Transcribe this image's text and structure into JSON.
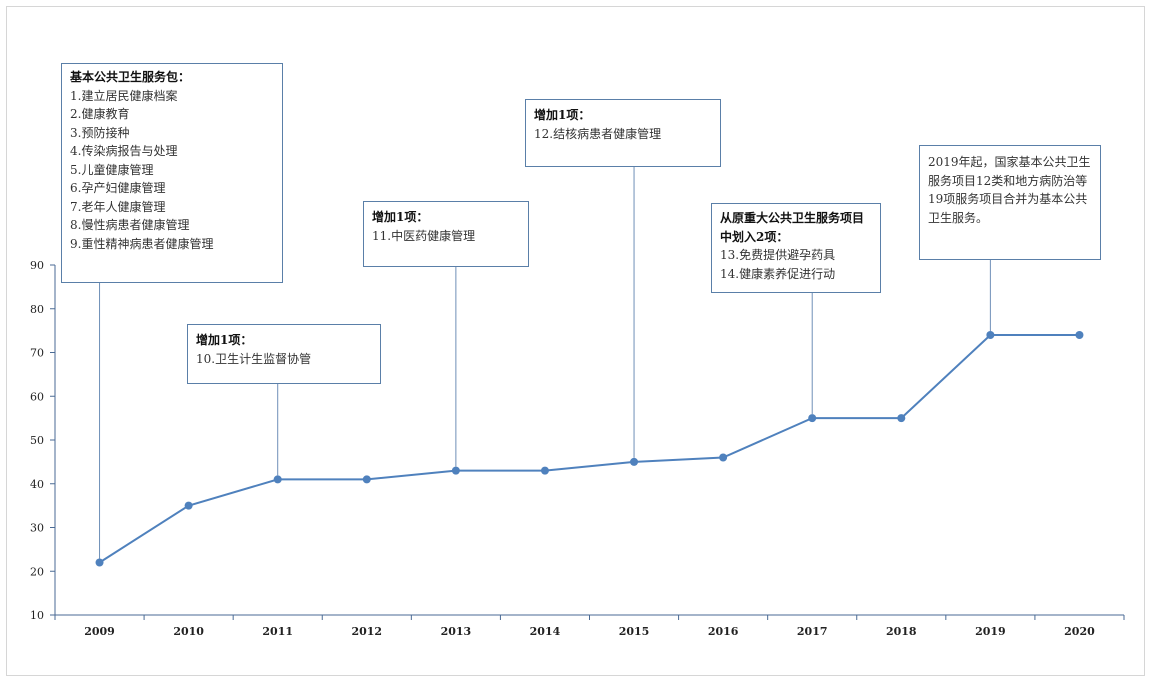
{
  "chart_data": {
    "type": "line",
    "title": "",
    "xlabel": "",
    "ylabel": "",
    "categories": [
      "2009",
      "2010",
      "2011",
      "2012",
      "2013",
      "2014",
      "2015",
      "2016",
      "2017",
      "2018",
      "2019",
      "2020"
    ],
    "values": [
      22,
      35,
      41,
      41,
      43,
      43,
      45,
      46,
      55,
      55,
      74,
      74
    ],
    "ylim": [
      10,
      90
    ],
    "yticks": [
      "10",
      "20",
      "30",
      "40",
      "50",
      "60",
      "70",
      "80",
      "90"
    ],
    "grid": false,
    "legend": "none",
    "line_color": "#4f81bd",
    "annotations": [
      {
        "category": "2009",
        "heading": "基本公共卫生服务包：",
        "lines": [
          "1.建立居民健康档案",
          "2.健康教育",
          "3.预防接种",
          "4.传染病报告与处理",
          "5.儿童健康管理",
          "6.孕产妇健康管理",
          "7.老年人健康管理",
          "8.慢性病患者健康管理",
          "9.重性精神病患者健康管理"
        ]
      },
      {
        "category": "2011",
        "heading": "增加1项：",
        "lines": [
          "10.卫生计生监督协管"
        ]
      },
      {
        "category": "2013",
        "heading": "增加1项：",
        "lines": [
          "11.中医药健康管理"
        ]
      },
      {
        "category": "2015",
        "heading": "增加1项：",
        "lines": [
          "12.结核病患者健康管理"
        ]
      },
      {
        "category": "2017",
        "heading": "从原重大公共卫生服务项目中划入2项：",
        "lines": [
          "13.免费提供避孕药具",
          "14.健康素养促进行动"
        ]
      },
      {
        "category": "2019",
        "heading": "",
        "lines": [
          "2019年起，国家基本公共卫生服务项目12类和地方病防治等19项服务项目合并为基本公共卫生服务。"
        ]
      }
    ]
  }
}
